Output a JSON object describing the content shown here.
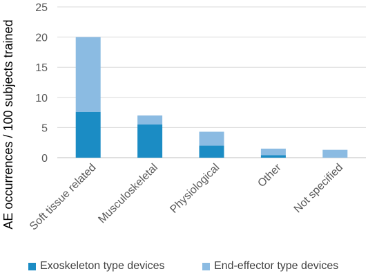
{
  "chart_data": {
    "type": "bar",
    "stacked": true,
    "title": "",
    "xlabel": "",
    "ylabel": "AE occurrences / 100 subjects trained",
    "ylim": [
      0,
      25
    ],
    "yticks": [
      0,
      5,
      10,
      15,
      20,
      25
    ],
    "grid": true,
    "legend_position": "bottom",
    "categories": [
      "Soft tissue related",
      "Musculoskeletal",
      "Physiological",
      "Other",
      "Not specified"
    ],
    "series": [
      {
        "name": "Exoskeleton type devices",
        "color": "#1b8cc4",
        "values": [
          7.6,
          5.5,
          2.0,
          0.4,
          0.0
        ]
      },
      {
        "name": "End-effector type devices",
        "color": "#8bbbe2",
        "values": [
          12.4,
          1.5,
          2.3,
          1.1,
          1.3
        ]
      }
    ]
  }
}
